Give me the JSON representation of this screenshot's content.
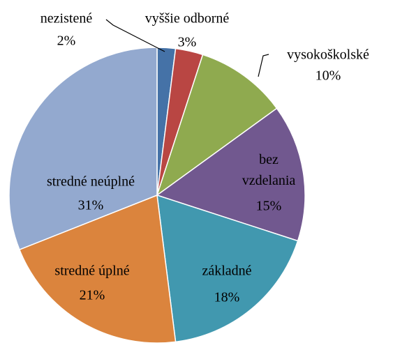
{
  "chart_data": {
    "type": "pie",
    "categories": [
      "nezistené",
      "vyššie odborné",
      "vysokoškolské",
      "bez vzdelania",
      "základné",
      "stredné úplné",
      "stredné neúplné"
    ],
    "values": [
      2,
      3,
      10,
      15,
      18,
      21,
      31
    ],
    "value_labels": [
      "2%",
      "3%",
      "10%",
      "15%",
      "18%",
      "21%",
      "31%"
    ],
    "colors": [
      "#4572a7",
      "#b94643",
      "#8faa4f",
      "#71588f",
      "#4198af",
      "#db843d",
      "#93a9cf"
    ]
  }
}
